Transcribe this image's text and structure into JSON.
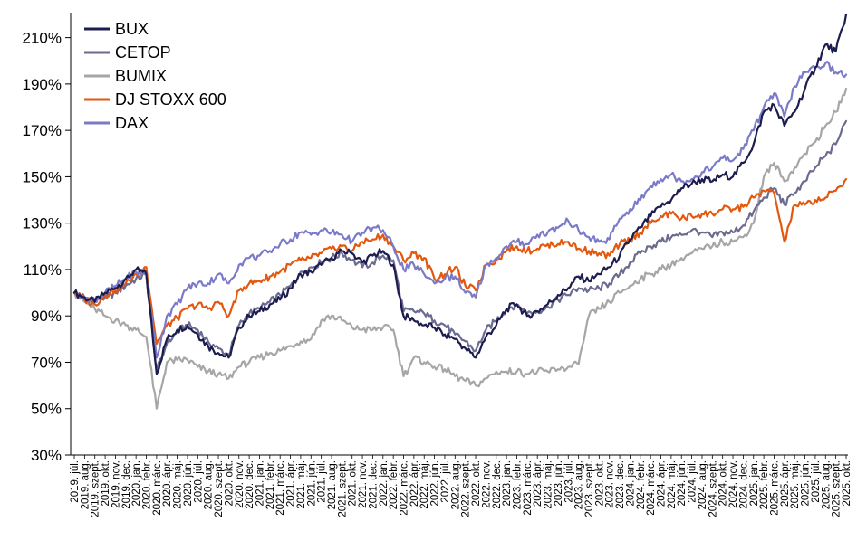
{
  "chart_data": {
    "type": "line",
    "title": "",
    "xlabel": "",
    "ylabel": "",
    "ylim": [
      30,
      220
    ],
    "yticks": [
      30,
      50,
      70,
      90,
      110,
      130,
      150,
      170,
      190,
      210
    ],
    "ytick_labels": [
      "30%",
      "50%",
      "70%",
      "90%",
      "110%",
      "130%",
      "150%",
      "170%",
      "190%",
      "210%"
    ],
    "grid": false,
    "legend_position": "top-left",
    "x": [
      "2019. júl.",
      "2019. aug.",
      "2019. szept.",
      "2019. okt.",
      "2019. nov.",
      "2019. dec.",
      "2020. jan.",
      "2020. febr.",
      "2020. márc.",
      "2020. ápr.",
      "2020. máj.",
      "2020. jún.",
      "2020. júl.",
      "2020. aug.",
      "2020. szept.",
      "2020. okt.",
      "2020. nov.",
      "2020. dec.",
      "2021. jan.",
      "2021. febr.",
      "2021. márc.",
      "2021. ápr.",
      "2021. máj.",
      "2021. jún.",
      "2021. júl.",
      "2021. aug.",
      "2021. szept.",
      "2021. okt.",
      "2021. nov.",
      "2021. dec.",
      "2022. jan.",
      "2022. febr.",
      "2022. márc.",
      "2022. ápr.",
      "2022. máj.",
      "2022. jún.",
      "2022. júl.",
      "2022. aug.",
      "2022. szept.",
      "2022. okt.",
      "2022. nov.",
      "2022. dec.",
      "2023. jan.",
      "2023. febr.",
      "2023. márc.",
      "2023. ápr.",
      "2023. máj.",
      "2023. jún.",
      "2023. júl.",
      "2023. aug.",
      "2023. szept.",
      "2023. okt.",
      "2023. nov.",
      "2023. dec.",
      "2024. jan.",
      "2024. febr.",
      "2024. márc.",
      "2024. ápr.",
      "2024. máj.",
      "2024. jún.",
      "2024. júl.",
      "2024. aug.",
      "2024. szept.",
      "2024. okt.",
      "2024. nov.",
      "2024. dec.",
      "2025. jan.",
      "2025. febr.",
      "2025. márc.",
      "2025. ápr.",
      "2025. máj.",
      "2025. jún.",
      "2025. júl.",
      "2025. aug.",
      "2025. szept.",
      "2025. okt."
    ],
    "series": [
      {
        "name": "BUX",
        "color": "#1c1c4e",
        "values": [
          100,
          98,
          96,
          100,
          102,
          106,
          110,
          108,
          65,
          80,
          84,
          86,
          82,
          77,
          74,
          72,
          85,
          90,
          92,
          95,
          97,
          102,
          108,
          109,
          112,
          115,
          118,
          117,
          113,
          116,
          118,
          112,
          90,
          88,
          86,
          85,
          82,
          80,
          76,
          72,
          81,
          86,
          93,
          95,
          90,
          92,
          95,
          99,
          102,
          107,
          105,
          108,
          111,
          116,
          123,
          128,
          133,
          137,
          140,
          145,
          147,
          149,
          148,
          151,
          150,
          156,
          164,
          178,
          181,
          172,
          178,
          188,
          197,
          207,
          204,
          220
        ]
      },
      {
        "name": "CETOP",
        "color": "#6b6b90",
        "values": [
          100,
          98,
          97,
          98,
          100,
          103,
          106,
          108,
          66,
          78,
          83,
          86,
          84,
          79,
          76,
          73,
          86,
          91,
          93,
          96,
          99,
          103,
          109,
          111,
          113,
          115,
          117,
          114,
          111,
          113,
          116,
          114,
          92,
          92,
          91,
          88,
          86,
          82,
          79,
          75,
          84,
          88,
          93,
          95,
          91,
          92,
          94,
          97,
          99,
          102,
          101,
          102,
          104,
          108,
          113,
          117,
          120,
          122,
          124,
          125,
          127,
          126,
          124,
          126,
          126,
          129,
          135,
          141,
          145,
          138,
          143,
          148,
          154,
          159,
          164,
          174
        ]
      },
      {
        "name": "BUMIX",
        "color": "#a6a6a6",
        "values": [
          100,
          96,
          93,
          90,
          88,
          86,
          84,
          81,
          50,
          70,
          71,
          71,
          68,
          66,
          65,
          63,
          68,
          70,
          72,
          74,
          75,
          77,
          79,
          80,
          88,
          90,
          88,
          85,
          84,
          84,
          85,
          84,
          64,
          72,
          70,
          68,
          67,
          64,
          62,
          60,
          63,
          66,
          66,
          66,
          65,
          66,
          66,
          67,
          68,
          69,
          90,
          93,
          96,
          100,
          103,
          106,
          108,
          110,
          112,
          115,
          117,
          119,
          120,
          122,
          122,
          124,
          130,
          150,
          156,
          148,
          154,
          160,
          165,
          172,
          178,
          188
        ]
      },
      {
        "name": "DJ STOXX 600",
        "color": "#e2580e",
        "values": [
          100,
          97,
          95,
          99,
          101,
          104,
          108,
          111,
          78,
          86,
          89,
          93,
          95,
          93,
          96,
          90,
          101,
          104,
          105,
          107,
          109,
          112,
          114,
          115,
          117,
          119,
          120,
          118,
          122,
          123,
          125,
          120,
          114,
          117,
          115,
          106,
          108,
          111,
          103,
          101,
          112,
          114,
          118,
          120,
          118,
          119,
          121,
          121,
          122,
          119,
          118,
          117,
          116,
          121,
          123,
          126,
          130,
          133,
          134,
          132,
          133,
          134,
          134,
          136,
          136,
          137,
          141,
          144,
          143,
          122,
          138,
          138,
          140,
          141,
          144,
          149
        ]
      },
      {
        "name": "DAX",
        "color": "#7a7ac8",
        "values": [
          100,
          98,
          97,
          100,
          103,
          106,
          109,
          108,
          72,
          90,
          95,
          102,
          104,
          104,
          108,
          104,
          112,
          115,
          116,
          118,
          121,
          123,
          126,
          125,
          127,
          126,
          125,
          122,
          126,
          128,
          127,
          120,
          110,
          112,
          108,
          104,
          106,
          107,
          100,
          98,
          112,
          115,
          120,
          122,
          121,
          125,
          126,
          128,
          131,
          127,
          124,
          122,
          123,
          132,
          136,
          140,
          146,
          149,
          151,
          148,
          149,
          152,
          154,
          158,
          157,
          162,
          170,
          180,
          186,
          176,
          189,
          195,
          197,
          199,
          195,
          194
        ]
      }
    ]
  }
}
